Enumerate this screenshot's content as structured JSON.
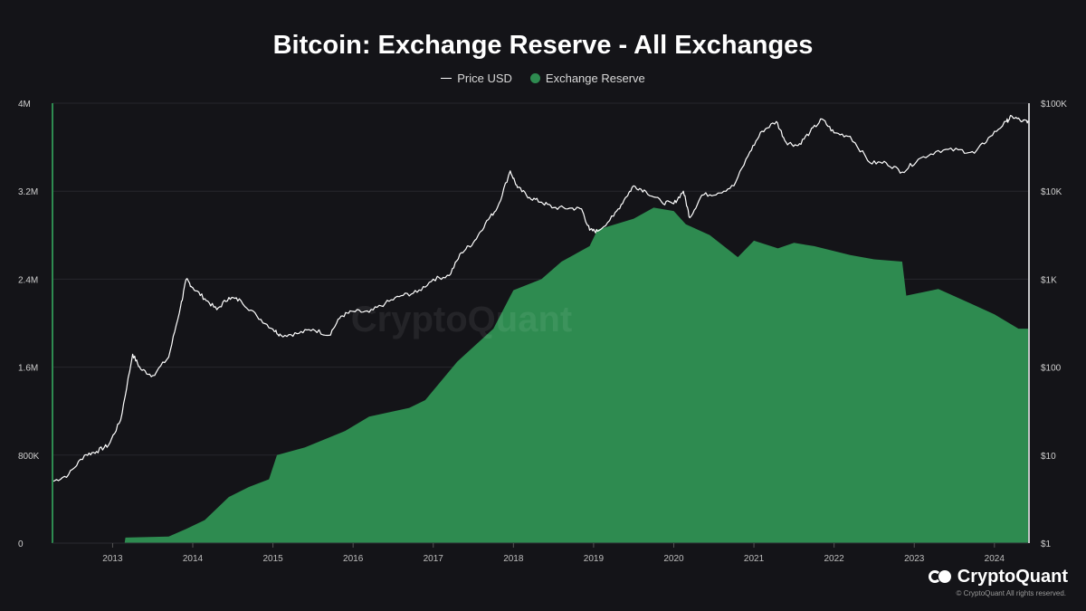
{
  "chart_data": {
    "type": "area",
    "title": "Bitcoin: Exchange Reserve - All Exchanges",
    "watermark": "CryptoQuant",
    "legend": {
      "placement": "top-center"
    },
    "x_ticks": [
      "2013",
      "2014",
      "2015",
      "2016",
      "2017",
      "2018",
      "2019",
      "2020",
      "2021",
      "2022",
      "2023",
      "2024"
    ],
    "xlim": [
      2012.25,
      2024.42
    ],
    "y_left": {
      "ticks": [
        "0",
        "800K",
        "1.6M",
        "2.4M",
        "3.2M",
        "4M"
      ],
      "ylim": [
        0,
        4000000
      ],
      "scale": "linear"
    },
    "y_right": {
      "ticks": [
        "$1",
        "$10",
        "$100",
        "$1K",
        "$10K",
        "$100K"
      ],
      "ylim": [
        1,
        100000
      ],
      "scale": "log"
    },
    "grid": true,
    "series": [
      {
        "name": "Price USD",
        "axis": "right",
        "style": "line",
        "color": "#ffffff",
        "points": [
          [
            2012.25,
            5
          ],
          [
            2012.45,
            6
          ],
          [
            2012.65,
            10
          ],
          [
            2012.8,
            11
          ],
          [
            2012.95,
            13
          ],
          [
            2013.1,
            25
          ],
          [
            2013.25,
            140
          ],
          [
            2013.35,
            95
          ],
          [
            2013.5,
            80
          ],
          [
            2013.7,
            130
          ],
          [
            2013.85,
            500
          ],
          [
            2013.92,
            1000
          ],
          [
            2014.0,
            800
          ],
          [
            2014.15,
            600
          ],
          [
            2014.3,
            450
          ],
          [
            2014.45,
            620
          ],
          [
            2014.6,
            570
          ],
          [
            2014.8,
            380
          ],
          [
            2015.0,
            270
          ],
          [
            2015.1,
            230
          ],
          [
            2015.3,
            240
          ],
          [
            2015.5,
            270
          ],
          [
            2015.7,
            230
          ],
          [
            2015.85,
            380
          ],
          [
            2016.0,
            430
          ],
          [
            2016.2,
            420
          ],
          [
            2016.4,
            530
          ],
          [
            2016.6,
            650
          ],
          [
            2016.8,
            710
          ],
          [
            2017.0,
            1000
          ],
          [
            2017.2,
            1100
          ],
          [
            2017.35,
            2000
          ],
          [
            2017.5,
            2600
          ],
          [
            2017.65,
            4300
          ],
          [
            2017.8,
            6500
          ],
          [
            2017.96,
            17000
          ],
          [
            2018.05,
            11000
          ],
          [
            2018.2,
            8500
          ],
          [
            2018.35,
            7500
          ],
          [
            2018.5,
            6500
          ],
          [
            2018.7,
            6400
          ],
          [
            2018.85,
            6300
          ],
          [
            2018.95,
            3600
          ],
          [
            2019.05,
            3500
          ],
          [
            2019.25,
            5200
          ],
          [
            2019.4,
            8500
          ],
          [
            2019.5,
            11500
          ],
          [
            2019.65,
            10000
          ],
          [
            2019.85,
            7500
          ],
          [
            2020.0,
            7200
          ],
          [
            2020.12,
            10000
          ],
          [
            2020.2,
            5000
          ],
          [
            2020.35,
            9000
          ],
          [
            2020.55,
            9500
          ],
          [
            2020.75,
            11500
          ],
          [
            2020.95,
            28000
          ],
          [
            2021.1,
            48000
          ],
          [
            2021.28,
            62000
          ],
          [
            2021.4,
            36000
          ],
          [
            2021.55,
            33000
          ],
          [
            2021.7,
            47000
          ],
          [
            2021.85,
            66000
          ],
          [
            2022.0,
            46000
          ],
          [
            2022.2,
            42000
          ],
          [
            2022.45,
            21000
          ],
          [
            2022.65,
            21000
          ],
          [
            2022.85,
            16500
          ],
          [
            2023.05,
            23000
          ],
          [
            2023.3,
            29000
          ],
          [
            2023.55,
            29500
          ],
          [
            2023.75,
            27000
          ],
          [
            2023.95,
            42000
          ],
          [
            2024.15,
            62000
          ],
          [
            2024.22,
            71000
          ],
          [
            2024.35,
            62000
          ],
          [
            2024.42,
            63000
          ]
        ]
      },
      {
        "name": "Exchange Reserve",
        "axis": "left",
        "style": "area",
        "color": "#2e8b50",
        "points": [
          [
            2013.15,
            0
          ],
          [
            2013.16,
            50000
          ],
          [
            2013.7,
            60000
          ],
          [
            2013.92,
            130000
          ],
          [
            2014.15,
            210000
          ],
          [
            2014.45,
            420000
          ],
          [
            2014.7,
            510000
          ],
          [
            2014.95,
            580000
          ],
          [
            2015.05,
            800000
          ],
          [
            2015.4,
            870000
          ],
          [
            2015.9,
            1020000
          ],
          [
            2016.2,
            1150000
          ],
          [
            2016.7,
            1230000
          ],
          [
            2016.9,
            1300000
          ],
          [
            2017.3,
            1650000
          ],
          [
            2017.75,
            1950000
          ],
          [
            2018.0,
            2300000
          ],
          [
            2018.35,
            2400000
          ],
          [
            2018.6,
            2560000
          ],
          [
            2018.95,
            2700000
          ],
          [
            2019.05,
            2850000
          ],
          [
            2019.5,
            2950000
          ],
          [
            2019.75,
            3050000
          ],
          [
            2020.0,
            3020000
          ],
          [
            2020.15,
            2900000
          ],
          [
            2020.45,
            2800000
          ],
          [
            2020.8,
            2600000
          ],
          [
            2021.0,
            2750000
          ],
          [
            2021.3,
            2680000
          ],
          [
            2021.5,
            2730000
          ],
          [
            2021.75,
            2700000
          ],
          [
            2022.2,
            2620000
          ],
          [
            2022.5,
            2580000
          ],
          [
            2022.85,
            2560000
          ],
          [
            2022.9,
            2250000
          ],
          [
            2023.3,
            2310000
          ],
          [
            2023.7,
            2180000
          ],
          [
            2024.0,
            2080000
          ],
          [
            2024.3,
            1950000
          ],
          [
            2024.42,
            1950000
          ],
          [
            2024.42,
            0
          ]
        ]
      }
    ]
  },
  "footer": {
    "brand": "CryptoQuant",
    "copyright": "© CryptoQuant All rights reserved."
  }
}
